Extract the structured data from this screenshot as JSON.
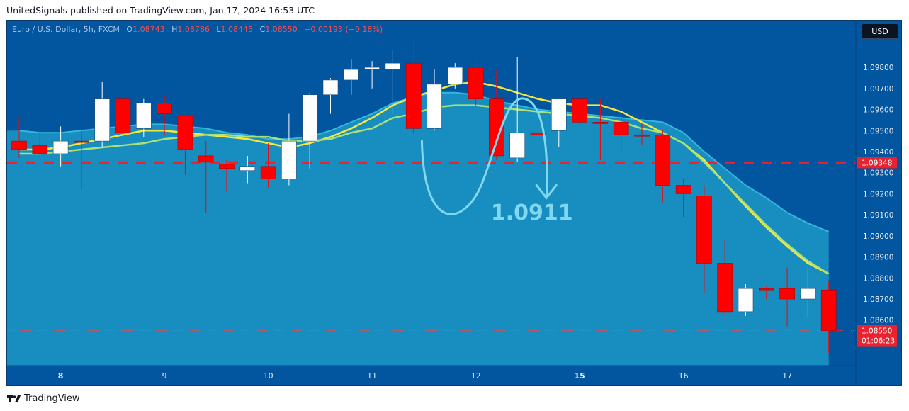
{
  "header": {
    "publish_text": "UnitedSignals published on TradingView.com, Jan 17, 2024 16:53 UTC"
  },
  "legend": {
    "symbol": "Euro / U.S. Dollar, 5h, FXCM",
    "o_label": "O",
    "o_value": "1.08743",
    "h_label": "H",
    "h_value": "1.08786",
    "l_label": "L",
    "l_value": "1.08445",
    "c_label": "C",
    "c_value": "1.08550",
    "change": "−0.00193 (−0.18%)"
  },
  "currency_button": "USD",
  "footer": {
    "brand": "TradingView"
  },
  "colors": {
    "background": "#02559f",
    "up_candle": "#ffffff",
    "down_candle": "#ff0000",
    "ma_fast": "#f5e642",
    "ma_slow": "#a8e07a",
    "band_fill": "#1f9ec8",
    "annotation": "#7fd8f0",
    "level_line": "#e8222e"
  },
  "chart_data": {
    "type": "candlestick",
    "symbol": "EURUSD",
    "timeframe": "5h",
    "y_axis": {
      "ticks": [
        "1.09800",
        "1.09700",
        "1.09600",
        "1.09500",
        "1.09400",
        "1.09300",
        "1.09200",
        "1.09100",
        "1.09000",
        "1.08900",
        "1.08800",
        "1.08700",
        "1.08600"
      ],
      "range": [
        1.08478,
        1.09908
      ]
    },
    "x_axis": {
      "labels": [
        {
          "label": "8",
          "index": 2,
          "bold": true
        },
        {
          "label": "9",
          "index": 7,
          "bold": false
        },
        {
          "label": "10",
          "index": 12,
          "bold": false
        },
        {
          "label": "11",
          "index": 17,
          "bold": false
        },
        {
          "label": "12",
          "index": 22,
          "bold": false
        },
        {
          "label": "15",
          "index": 27,
          "bold": true
        },
        {
          "label": "16",
          "index": 32,
          "bold": false
        },
        {
          "label": "17",
          "index": 37,
          "bold": false
        }
      ]
    },
    "candles": [
      {
        "o": 1.0945,
        "h": 1.0956,
        "l": 1.0937,
        "c": 1.0941
      },
      {
        "o": 1.0943,
        "h": 1.0952,
        "l": 1.0938,
        "c": 1.0939
      },
      {
        "o": 1.0939,
        "h": 1.0952,
        "l": 1.0933,
        "c": 1.0945
      },
      {
        "o": 1.0945,
        "h": 1.095,
        "l": 1.0922,
        "c": 1.0945
      },
      {
        "o": 1.0945,
        "h": 1.0973,
        "l": 1.0942,
        "c": 1.0965
      },
      {
        "o": 1.0965,
        "h": 1.0966,
        "l": 1.0948,
        "c": 1.0949
      },
      {
        "o": 1.0951,
        "h": 1.0965,
        "l": 1.0947,
        "c": 1.0963
      },
      {
        "o": 1.0963,
        "h": 1.0967,
        "l": 1.0948,
        "c": 1.0958
      },
      {
        "o": 1.0957,
        "h": 1.0958,
        "l": 1.0929,
        "c": 1.0941
      },
      {
        "o": 1.0938,
        "h": 1.0945,
        "l": 1.0911,
        "c": 1.0935
      },
      {
        "o": 1.0934,
        "h": 1.0936,
        "l": 1.0921,
        "c": 1.0932
      },
      {
        "o": 1.0931,
        "h": 1.0938,
        "l": 1.0925,
        "c": 1.0933
      },
      {
        "o": 1.0933,
        "h": 1.0944,
        "l": 1.0923,
        "c": 1.0927
      },
      {
        "o": 1.0927,
        "h": 1.0958,
        "l": 1.0924,
        "c": 1.0945
      },
      {
        "o": 1.0945,
        "h": 1.0968,
        "l": 1.0932,
        "c": 1.0967
      },
      {
        "o": 1.0967,
        "h": 1.0975,
        "l": 1.0958,
        "c": 1.0974
      },
      {
        "o": 1.0974,
        "h": 1.0984,
        "l": 1.0967,
        "c": 1.0979
      },
      {
        "o": 1.0979,
        "h": 1.0983,
        "l": 1.097,
        "c": 1.098
      },
      {
        "o": 1.0979,
        "h": 1.0988,
        "l": 1.0958,
        "c": 1.0982
      },
      {
        "o": 1.0982,
        "h": 1.0993,
        "l": 1.0949,
        "c": 1.0951
      },
      {
        "o": 1.0951,
        "h": 1.0979,
        "l": 1.095,
        "c": 1.0972
      },
      {
        "o": 1.0972,
        "h": 1.0982,
        "l": 1.097,
        "c": 1.098
      },
      {
        "o": 1.098,
        "h": 1.0983,
        "l": 1.0962,
        "c": 1.0965
      },
      {
        "o": 1.0965,
        "h": 1.0979,
        "l": 1.0936,
        "c": 1.0938
      },
      {
        "o": 1.0937,
        "h": 1.0985,
        "l": 1.0935,
        "c": 1.0949
      },
      {
        "o": 1.0949,
        "h": 1.0954,
        "l": 1.0948,
        "c": 1.0948
      },
      {
        "o": 1.095,
        "h": 1.0965,
        "l": 1.0942,
        "c": 1.0965
      },
      {
        "o": 1.0965,
        "h": 1.0967,
        "l": 1.0953,
        "c": 1.0954
      },
      {
        "o": 1.0954,
        "h": 1.0965,
        "l": 1.0936,
        "c": 1.0954
      },
      {
        "o": 1.0954,
        "h": 1.0956,
        "l": 1.0939,
        "c": 1.0948
      },
      {
        "o": 1.0948,
        "h": 1.0953,
        "l": 1.0943,
        "c": 1.0948
      },
      {
        "o": 1.0948,
        "h": 1.095,
        "l": 1.0916,
        "c": 1.0924
      },
      {
        "o": 1.0924,
        "h": 1.0927,
        "l": 1.0909,
        "c": 1.092
      },
      {
        "o": 1.0919,
        "h": 1.0924,
        "l": 1.0873,
        "c": 1.0887
      },
      {
        "o": 1.0887,
        "h": 1.0898,
        "l": 1.0862,
        "c": 1.0864
      },
      {
        "o": 1.0864,
        "h": 1.0877,
        "l": 1.0862,
        "c": 1.0875
      },
      {
        "o": 1.0875,
        "h": 1.0876,
        "l": 1.087,
        "c": 1.0875
      },
      {
        "o": 1.0875,
        "h": 1.0885,
        "l": 1.0857,
        "c": 1.087
      },
      {
        "o": 1.087,
        "h": 1.0885,
        "l": 1.0861,
        "c": 1.0875
      },
      {
        "o": 1.08743,
        "h": 1.08786,
        "l": 1.08445,
        "c": 1.0855
      }
    ],
    "ma_fast": [
      1.0941,
      1.0941,
      1.0942,
      1.0944,
      1.0946,
      1.0948,
      1.095,
      1.095,
      1.0949,
      1.0948,
      1.0947,
      1.0946,
      1.0944,
      1.0942,
      1.0944,
      1.0947,
      1.0951,
      1.0956,
      1.0962,
      1.0966,
      1.0969,
      1.0972,
      1.0973,
      1.0971,
      1.0968,
      1.0965,
      1.0963,
      1.0962,
      1.0962,
      1.0959,
      1.0954,
      1.0949,
      1.0944,
      1.0936,
      1.0925,
      1.0914,
      1.0904,
      1.0895,
      1.0887,
      1.0882
    ],
    "ma_slow": [
      1.0939,
      1.0939,
      1.094,
      1.0941,
      1.0942,
      1.0943,
      1.0944,
      1.0946,
      1.0947,
      1.0948,
      1.0948,
      1.0947,
      1.0947,
      1.0945,
      1.0945,
      1.0946,
      1.0949,
      1.0951,
      1.0956,
      1.0958,
      1.0961,
      1.0962,
      1.0962,
      1.0961,
      1.096,
      1.0959,
      1.0958,
      1.0957,
      1.0956,
      1.0954,
      1.0951,
      1.0949,
      1.0944,
      1.0935,
      1.0925,
      1.0915,
      1.0905,
      1.0896,
      1.0888,
      1.0882
    ],
    "band_upper": [
      1.095,
      1.0949,
      1.0949,
      1.095,
      1.0951,
      1.0952,
      1.0953,
      1.0953,
      1.0952,
      1.0951,
      1.0949,
      1.0948,
      1.0946,
      1.0946,
      1.0947,
      1.095,
      1.0954,
      1.0958,
      1.0963,
      1.0966,
      1.0968,
      1.0968,
      1.0967,
      1.0964,
      1.0962,
      1.096,
      1.0959,
      1.0958,
      1.0957,
      1.0956,
      1.0955,
      1.0954,
      1.0949,
      1.094,
      1.0932,
      1.0924,
      1.0918,
      1.0911,
      1.0906,
      1.0902
    ],
    "horizontal_level": {
      "value": 1.09348,
      "label": "1.09348"
    },
    "last_price": {
      "value": 1.0855,
      "label": "1.08550",
      "countdown": "01:06:23"
    },
    "annotation": {
      "target_label": "1.0911"
    }
  }
}
